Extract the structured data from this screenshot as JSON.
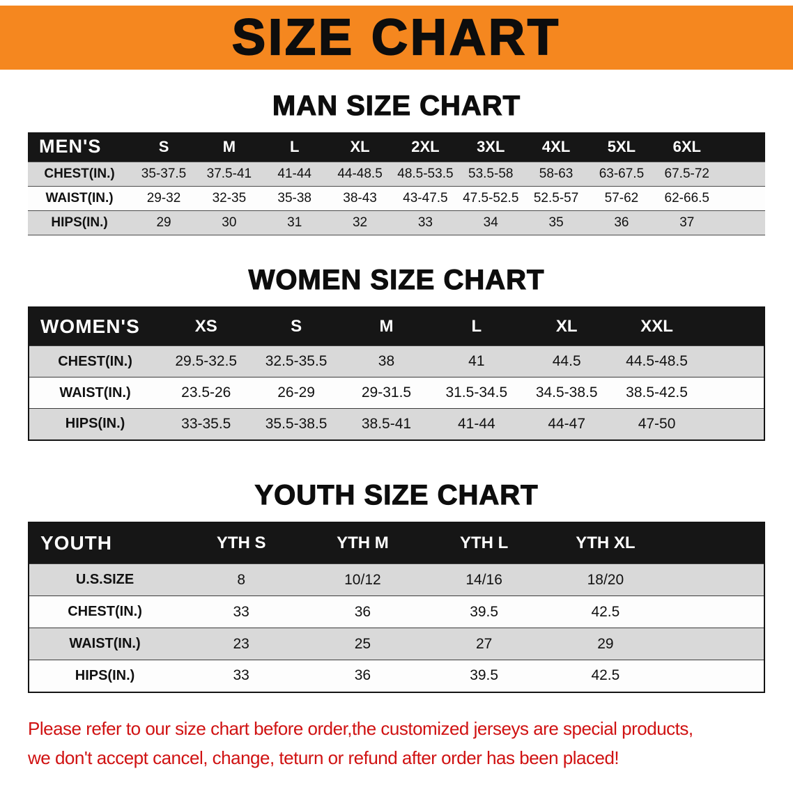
{
  "banner": {
    "title": "SIZE CHART"
  },
  "sections": [
    {
      "id": "men",
      "heading": "MAN SIZE CHART",
      "table": {
        "header": [
          "MEN'S",
          "S",
          "M",
          "L",
          "XL",
          "2XL",
          "3XL",
          "4XL",
          "5XL",
          "6XL"
        ],
        "rows": [
          [
            "CHEST(IN.)",
            "35-37.5",
            "37.5-41",
            "41-44",
            "44-48.5",
            "48.5-53.5",
            "53.5-58",
            "58-63",
            "63-67.5",
            "67.5-72"
          ],
          [
            "WAIST(IN.)",
            "29-32",
            "32-35",
            "35-38",
            "38-43",
            "43-47.5",
            "47.5-52.5",
            "52.5-57",
            "57-62",
            "62-66.5"
          ],
          [
            "HIPS(IN.)",
            "29",
            "30",
            "31",
            "32",
            "33",
            "34",
            "35",
            "36",
            "37"
          ]
        ]
      }
    },
    {
      "id": "women",
      "heading": "WOMEN SIZE CHART",
      "table": {
        "header": [
          "WOMEN'S",
          "XS",
          "S",
          "M",
          "L",
          "XL",
          "XXL"
        ],
        "rows": [
          [
            "CHEST(IN.)",
            "29.5-32.5",
            "32.5-35.5",
            "38",
            "41",
            "44.5",
            "44.5-48.5"
          ],
          [
            "WAIST(IN.)",
            "23.5-26",
            "26-29",
            "29-31.5",
            "31.5-34.5",
            "34.5-38.5",
            "38.5-42.5"
          ],
          [
            "HIPS(IN.)",
            "33-35.5",
            "35.5-38.5",
            "38.5-41",
            "41-44",
            "44-47",
            "47-50"
          ]
        ]
      }
    },
    {
      "id": "youth",
      "heading": "YOUTH SIZE CHART",
      "table": {
        "header": [
          "YOUTH",
          "YTH S",
          "YTH M",
          "YTH L",
          "YTH XL"
        ],
        "rows": [
          [
            "U.S.SIZE",
            "8",
            "10/12",
            "14/16",
            "18/20"
          ],
          [
            "CHEST(IN.)",
            "33",
            "36",
            "39.5",
            "42.5"
          ],
          [
            "WAIST(IN.)",
            "23",
            "25",
            "27",
            "29"
          ],
          [
            "HIPS(IN.)",
            "33",
            "36",
            "39.5",
            "42.5"
          ]
        ]
      }
    }
  ],
  "disclaimer": {
    "line1": "Please refer to our size chart before order,the customized jerseys are special products,",
    "line2": "we don't accept cancel, change, teturn or refund after order has been placed!"
  },
  "colors": {
    "banner_orange": "#f5871f",
    "header_black": "#161616",
    "row_gray": "#d9d9d9",
    "row_white": "#fdfdfd",
    "disclaimer_red": "#d01212",
    "text_black": "#111111"
  }
}
